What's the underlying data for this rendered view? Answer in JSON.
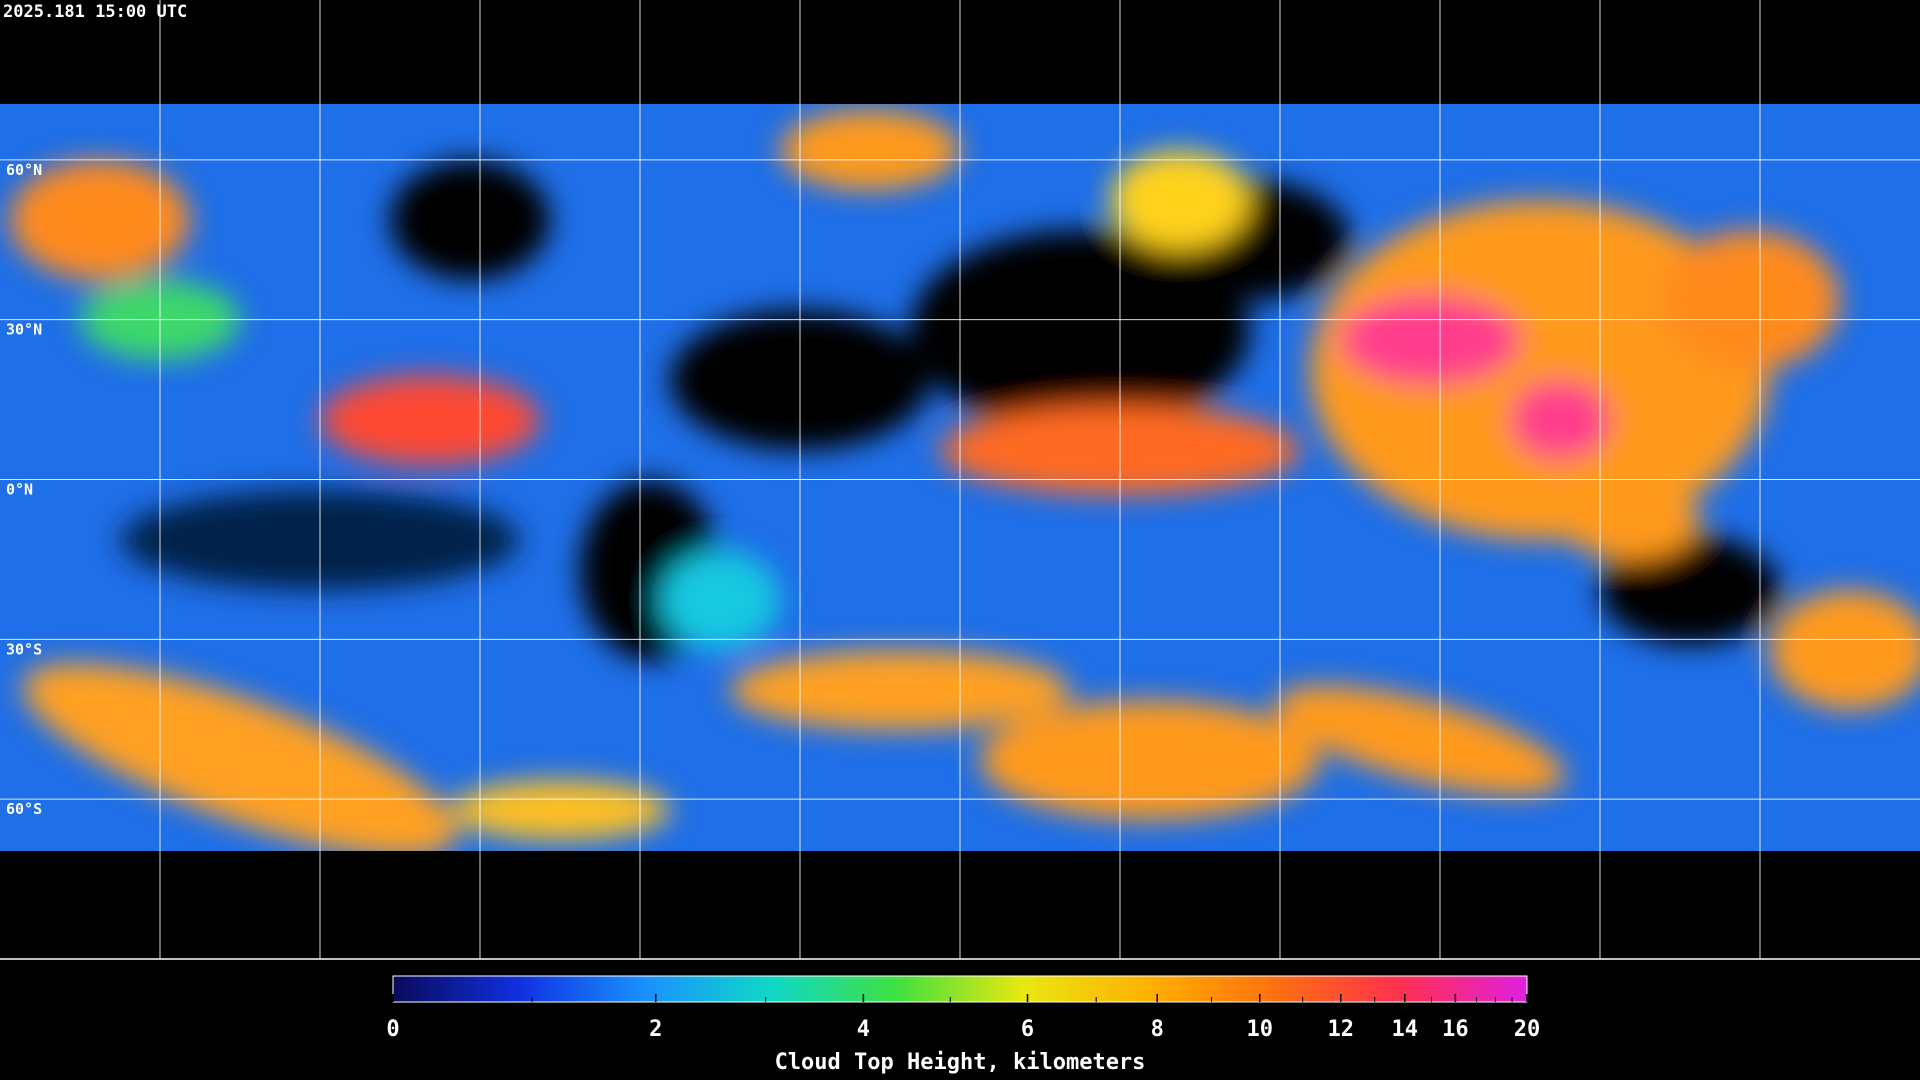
{
  "timestamp": "2025.181 15:00 UTC",
  "map": {
    "lat_grid": [
      {
        "value": 60,
        "label": "60°N"
      },
      {
        "value": 30,
        "label": "30°N"
      },
      {
        "value": 0,
        "label": "0°N"
      },
      {
        "value": -30,
        "label": "30°S"
      },
      {
        "value": -60,
        "label": "60°S"
      }
    ],
    "lon_grid": [
      -150,
      -120,
      -90,
      -60,
      -30,
      0,
      30,
      60,
      90,
      120,
      150
    ],
    "latlim": [
      90,
      -90
    ],
    "lonlim": [
      -180,
      180
    ]
  },
  "colorbar": {
    "title": "Cloud Top Height, kilometers",
    "lim": [
      0,
      20
    ],
    "ticks": [
      0,
      2,
      4,
      6,
      8,
      10,
      12,
      14,
      16,
      20
    ],
    "minor_ticks": [
      1,
      3,
      5,
      7,
      9,
      11,
      13,
      15,
      17,
      18,
      19
    ],
    "colors": [
      "#0a0a5a",
      "#1030e0",
      "#1a90ff",
      "#10d8c8",
      "#40e040",
      "#e8e810",
      "#ffb000",
      "#ff7010",
      "#ff3050",
      "#e020e0"
    ]
  }
}
